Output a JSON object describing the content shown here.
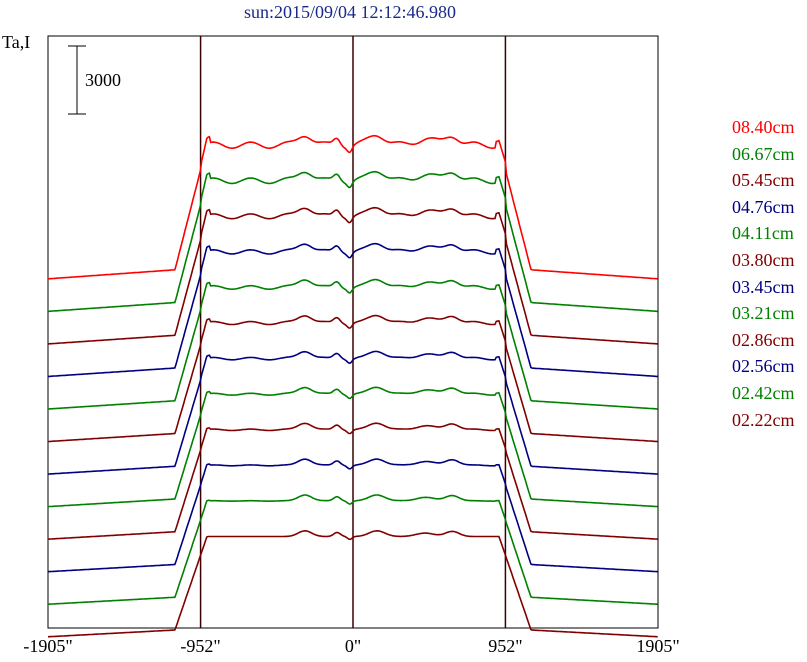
{
  "chart_data": {
    "type": "line",
    "title": "sun:2015/09/04 12:12:46.980",
    "ylabel": "Ta,I",
    "scale_bar": {
      "label": "3000",
      "value": 3000
    },
    "x_ticks": [
      {
        "label": "-1905\"",
        "value": -1905
      },
      {
        "label": "-952\"",
        "value": -952
      },
      {
        "label": "0\"",
        "value": 0
      },
      {
        "label": "952\"",
        "value": 952
      },
      {
        "label": "1905\"",
        "value": 1905
      }
    ],
    "xlim": [
      -1905,
      1905
    ],
    "vertical_lines": [
      -952,
      0,
      952
    ],
    "series": [
      {
        "name": "08.40cm",
        "color": "#ff0000"
      },
      {
        "name": "06.67cm",
        "color": "#008000"
      },
      {
        "name": "05.45cm",
        "color": "#800000"
      },
      {
        "name": "04.76cm",
        "color": "#000080"
      },
      {
        "name": "04.11cm",
        "color": "#008000"
      },
      {
        "name": "03.80cm",
        "color": "#800000"
      },
      {
        "name": "03.45cm",
        "color": "#000080"
      },
      {
        "name": "03.21cm",
        "color": "#008000"
      },
      {
        "name": "02.86cm",
        "color": "#800000"
      },
      {
        "name": "02.56cm",
        "color": "#000080"
      },
      {
        "name": "02.42cm",
        "color": "#008000"
      },
      {
        "name": "02.22cm",
        "color": "#800000"
      }
    ]
  }
}
